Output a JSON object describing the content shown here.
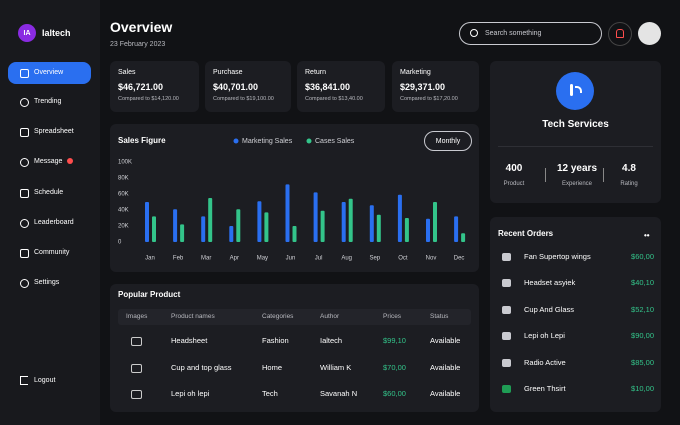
{
  "sidebar": {
    "brand_initials": "IA",
    "brand": "Ialtech",
    "nav": [
      "Overview",
      "Trending",
      "Spreadsheet",
      "Message",
      "Schedule",
      "Leaderboard",
      "Community",
      "Settings"
    ],
    "logout": "Logout"
  },
  "header": {
    "title": "Overview",
    "date": "23 February 2023",
    "search_placeholder": "Search something"
  },
  "stats": [
    {
      "label": "Sales",
      "value": "$46,721.00",
      "compared": "Compared to $14,120.00"
    },
    {
      "label": "Purchase",
      "value": "$40,701.00",
      "compared": "Compared to $19,100.00"
    },
    {
      "label": "Return",
      "value": "$36,841.00",
      "compared": "Compared to $13,40.00"
    },
    {
      "label": "Marketing",
      "value": "$29,371.00",
      "compared": "Compared to $17,20.00"
    }
  ],
  "chart_data": {
    "type": "bar",
    "title": "Sales Figure",
    "filter": "Monthly",
    "categories": [
      "Jan",
      "Feb",
      "Mar",
      "Apr",
      "May",
      "Jun",
      "Jul",
      "Aug",
      "Sep",
      "Oct",
      "Nov",
      "Dec"
    ],
    "series": [
      {
        "name": "Marketing Sales",
        "color": "#2a6ff0",
        "values": [
          50,
          41,
          32,
          20,
          51,
          72,
          62,
          50,
          46,
          59,
          29,
          32
        ]
      },
      {
        "name": "Cases Sales",
        "color": "#33c48a",
        "values": [
          32,
          22,
          55,
          41,
          37,
          20,
          39,
          54,
          34,
          30,
          50,
          11
        ]
      }
    ],
    "ylim": [
      0,
      100
    ],
    "yticks": [
      0,
      {
        "value": 20,
        "label": "20K"
      },
      {
        "value": 40,
        "label": "40K"
      },
      {
        "value": 60,
        "label": "60K"
      },
      {
        "value": 80,
        "label": "80K"
      },
      {
        "value": 100,
        "label": "100K"
      }
    ]
  },
  "popular_product": {
    "title": "Popular Product",
    "columns": [
      "Images",
      "Product names",
      "Categories",
      "Author",
      "Prices",
      "Status"
    ],
    "rows": [
      [
        "Headsheet",
        "Fashion",
        "Ialtech",
        "$99,10",
        "Available"
      ],
      [
        "Cup and top glass",
        "Home",
        "William K",
        "$70,00",
        "Available"
      ],
      [
        "Lepi oh lepi",
        "Tech",
        "Savanah N",
        "$60,00",
        "Available"
      ]
    ]
  },
  "profile": {
    "name": "Tech Services",
    "stats": [
      {
        "value": "400",
        "label": "Product"
      },
      {
        "value": "12 years",
        "label": "Experience"
      },
      {
        "value": "4.8",
        "label": "Rating"
      }
    ]
  },
  "recent_orders": {
    "title": "Recent Orders",
    "items": [
      {
        "name": "Fan Supertop wings",
        "price": "$60,00"
      },
      {
        "name": "Headset asyiek",
        "price": "$40,10"
      },
      {
        "name": "Cup And Glass",
        "price": "$52,10"
      },
      {
        "name": "Lepi oh Lepi",
        "price": "$90,00"
      },
      {
        "name": "Radio Active",
        "price": "$85,00"
      },
      {
        "name": "Green Thsirt",
        "price": "$10,00"
      }
    ]
  }
}
